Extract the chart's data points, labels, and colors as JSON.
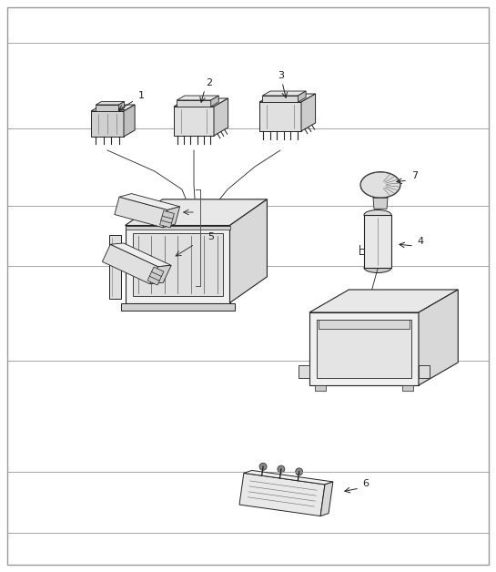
{
  "background_color": "#ffffff",
  "border_color": "#999999",
  "line_color": "#222222",
  "label_color": "#222222",
  "fig_width": 5.45,
  "fig_height": 6.28,
  "dpi": 100,
  "hlines": [
    0.068,
    0.175,
    0.37,
    0.535,
    0.64,
    0.775,
    0.925
  ],
  "lw_thin": 0.5,
  "lw_med": 0.8,
  "lw_thick": 1.0
}
